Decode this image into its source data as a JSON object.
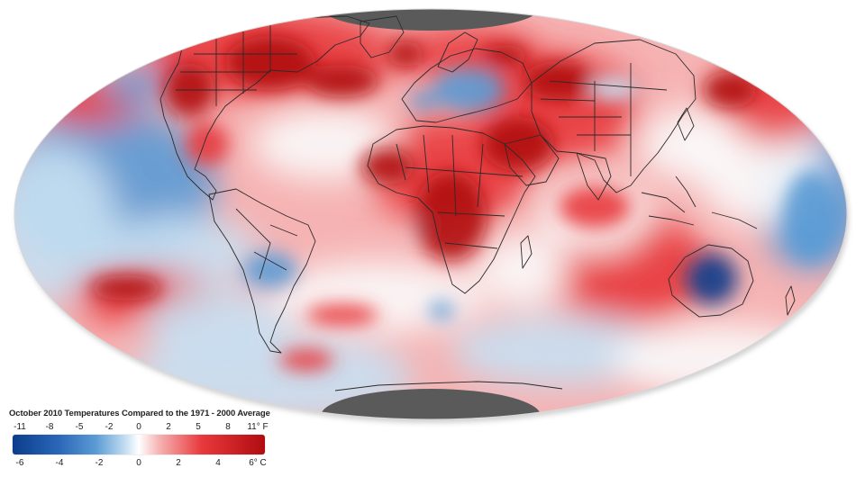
{
  "map": {
    "projection": "hammer",
    "colors": {
      "deep_blue": "#0c3d8c",
      "mid_blue": "#5b9bd5",
      "light_blue": "#c7e0f2",
      "white": "#fbfbfb",
      "light_red": "#f6b3b3",
      "mid_red": "#e8393c",
      "deep_red": "#b00c10",
      "no_data": "#5a5a5a",
      "borders": "#2b2b2b"
    }
  },
  "legend": {
    "title": "October 2010 Temperatures Compared to the 1971 - 2000 Average",
    "fahrenheit_ticks": [
      "-11",
      "-8",
      "-5",
      "-2",
      "0",
      "2",
      "5",
      "8",
      "11° F"
    ],
    "celsius_ticks": [
      "-6",
      "-4",
      "-2",
      "0",
      "2",
      "4",
      "6° C"
    ],
    "celsius_range": [
      -6,
      6
    ]
  }
}
